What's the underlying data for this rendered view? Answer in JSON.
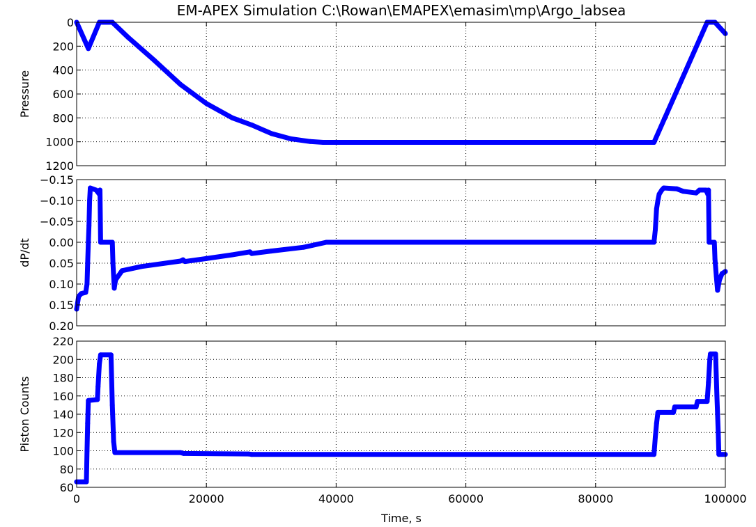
{
  "figure": {
    "title": "EM-APEX Simulation C:\\Rowan\\EMAPEX\\emasim\\mp\\Argo_labsea",
    "xlabel": "Time, s",
    "series_color": "#0000ff",
    "grid_color": "#000000"
  },
  "chart_data": [
    {
      "type": "scatter",
      "title": "EM-APEX Simulation C:\\Rowan\\EMAPEX\\emasim\\mp\\Argo_labsea",
      "xlabel": "",
      "ylabel": "Pressure",
      "xlim": [
        0,
        100000
      ],
      "ylim": [
        1200,
        0
      ],
      "y_inverted": true,
      "grid": true,
      "xticks": [
        0,
        20000,
        40000,
        60000,
        80000,
        100000
      ],
      "xtick_labels": [],
      "yticks": [
        0,
        200,
        400,
        600,
        800,
        1000,
        1200
      ],
      "ytick_labels": [
        "0",
        "200",
        "400",
        "600",
        "800",
        "1000",
        "1200"
      ],
      "series": [
        {
          "color": "#0000ff",
          "points": [
            [
              0,
              0
            ],
            [
              1800,
              220
            ],
            [
              3500,
              0
            ],
            [
              5500,
              0
            ],
            [
              8000,
              130
            ],
            [
              12000,
              320
            ],
            [
              16000,
              520
            ],
            [
              20000,
              680
            ],
            [
              24000,
              800
            ],
            [
              27000,
              860
            ],
            [
              30000,
              930
            ],
            [
              33000,
              975
            ],
            [
              36000,
              998
            ],
            [
              38000,
              1005
            ],
            [
              60000,
              1005
            ],
            [
              80000,
              1005
            ],
            [
              89000,
              1005
            ],
            [
              97200,
              0
            ],
            [
              98400,
              0
            ],
            [
              100000,
              95
            ]
          ]
        }
      ]
    },
    {
      "type": "scatter",
      "xlabel": "",
      "ylabel": "dP/dt",
      "xlim": [
        0,
        100000
      ],
      "ylim": [
        0.2,
        -0.15
      ],
      "y_inverted": true,
      "grid": true,
      "xticks": [
        0,
        20000,
        40000,
        60000,
        80000,
        100000
      ],
      "xtick_labels": [],
      "yticks": [
        -0.15,
        -0.1,
        -0.05,
        0.0,
        0.05,
        0.1,
        0.15,
        0.2
      ],
      "ytick_labels": [
        "−0.15",
        "−0.10",
        "−0.05",
        "0.00",
        "0.05",
        "0.10",
        "0.15",
        "0.20"
      ],
      "series": [
        {
          "color": "#0000ff",
          "points": [
            [
              0,
              0.16
            ],
            [
              300,
              0.13
            ],
            [
              700,
              0.123
            ],
            [
              1400,
              0.12
            ],
            [
              1600,
              0.1
            ],
            [
              1700,
              0.05
            ],
            [
              1800,
              0.0
            ],
            [
              1900,
              -0.04
            ],
            [
              2000,
              -0.1
            ],
            [
              2100,
              -0.13
            ],
            [
              3000,
              -0.125
            ],
            [
              3500,
              -0.115
            ],
            [
              3600,
              -0.125
            ],
            [
              3700,
              0.0
            ],
            [
              5500,
              0.0
            ],
            [
              5600,
              0.05
            ],
            [
              5800,
              0.11
            ],
            [
              6000,
              0.09
            ],
            [
              7000,
              0.068
            ],
            [
              10000,
              0.058
            ],
            [
              16000,
              0.045
            ],
            [
              16400,
              0.042
            ],
            [
              16700,
              0.046
            ],
            [
              20000,
              0.039
            ],
            [
              24000,
              0.03
            ],
            [
              26700,
              0.023
            ],
            [
              27000,
              0.027
            ],
            [
              30000,
              0.021
            ],
            [
              35000,
              0.012
            ],
            [
              38500,
              0.0
            ],
            [
              60000,
              0.0
            ],
            [
              80000,
              0.0
            ],
            [
              89000,
              0.0
            ],
            [
              89200,
              -0.03
            ],
            [
              89400,
              -0.08
            ],
            [
              89600,
              -0.1
            ],
            [
              89800,
              -0.115
            ],
            [
              90200,
              -0.125
            ],
            [
              90500,
              -0.13
            ],
            [
              92500,
              -0.128
            ],
            [
              93500,
              -0.122
            ],
            [
              95500,
              -0.118
            ],
            [
              96000,
              -0.125
            ],
            [
              97000,
              -0.125
            ],
            [
              97300,
              -0.115
            ],
            [
              97400,
              -0.125
            ],
            [
              97500,
              0.0
            ],
            [
              98300,
              0.0
            ],
            [
              98400,
              0.04
            ],
            [
              98600,
              0.08
            ],
            [
              98800,
              0.115
            ],
            [
              99100,
              0.09
            ],
            [
              99500,
              0.075
            ],
            [
              100000,
              0.07
            ]
          ]
        }
      ]
    },
    {
      "type": "scatter",
      "xlabel": "Time, s",
      "ylabel": "Piston Counts",
      "xlim": [
        0,
        100000
      ],
      "ylim": [
        60,
        220
      ],
      "grid": true,
      "xticks": [
        0,
        20000,
        40000,
        60000,
        80000,
        100000
      ],
      "xtick_labels": [
        "0",
        "20000",
        "40000",
        "60000",
        "80000",
        "100000"
      ],
      "yticks": [
        60,
        80,
        100,
        120,
        140,
        160,
        180,
        200,
        220
      ],
      "ytick_labels": [
        "60",
        "80",
        "100",
        "120",
        "140",
        "160",
        "180",
        "200",
        "220"
      ],
      "series": [
        {
          "color": "#0000ff",
          "points": [
            [
              0,
              66
            ],
            [
              1500,
              66
            ],
            [
              1600,
              100
            ],
            [
              1700,
              130
            ],
            [
              1800,
              155
            ],
            [
              3200,
              156
            ],
            [
              3300,
              170
            ],
            [
              3500,
              195
            ],
            [
              3700,
              205
            ],
            [
              5300,
              205
            ],
            [
              5500,
              150
            ],
            [
              5700,
              110
            ],
            [
              5900,
              98
            ],
            [
              16000,
              98
            ],
            [
              16500,
              97
            ],
            [
              26500,
              96.5
            ],
            [
              27000,
              96
            ],
            [
              60000,
              96
            ],
            [
              89000,
              96
            ],
            [
              89200,
              115
            ],
            [
              89400,
              130
            ],
            [
              89600,
              142
            ],
            [
              92000,
              142
            ],
            [
              92200,
              148
            ],
            [
              95500,
              148
            ],
            [
              95700,
              154
            ],
            [
              97200,
              154
            ],
            [
              97400,
              175
            ],
            [
              97600,
              200
            ],
            [
              97700,
              206
            ],
            [
              98500,
              206
            ],
            [
              98700,
              160
            ],
            [
              98900,
              120
            ],
            [
              99000,
              96
            ],
            [
              100000,
              96
            ]
          ]
        }
      ]
    }
  ]
}
